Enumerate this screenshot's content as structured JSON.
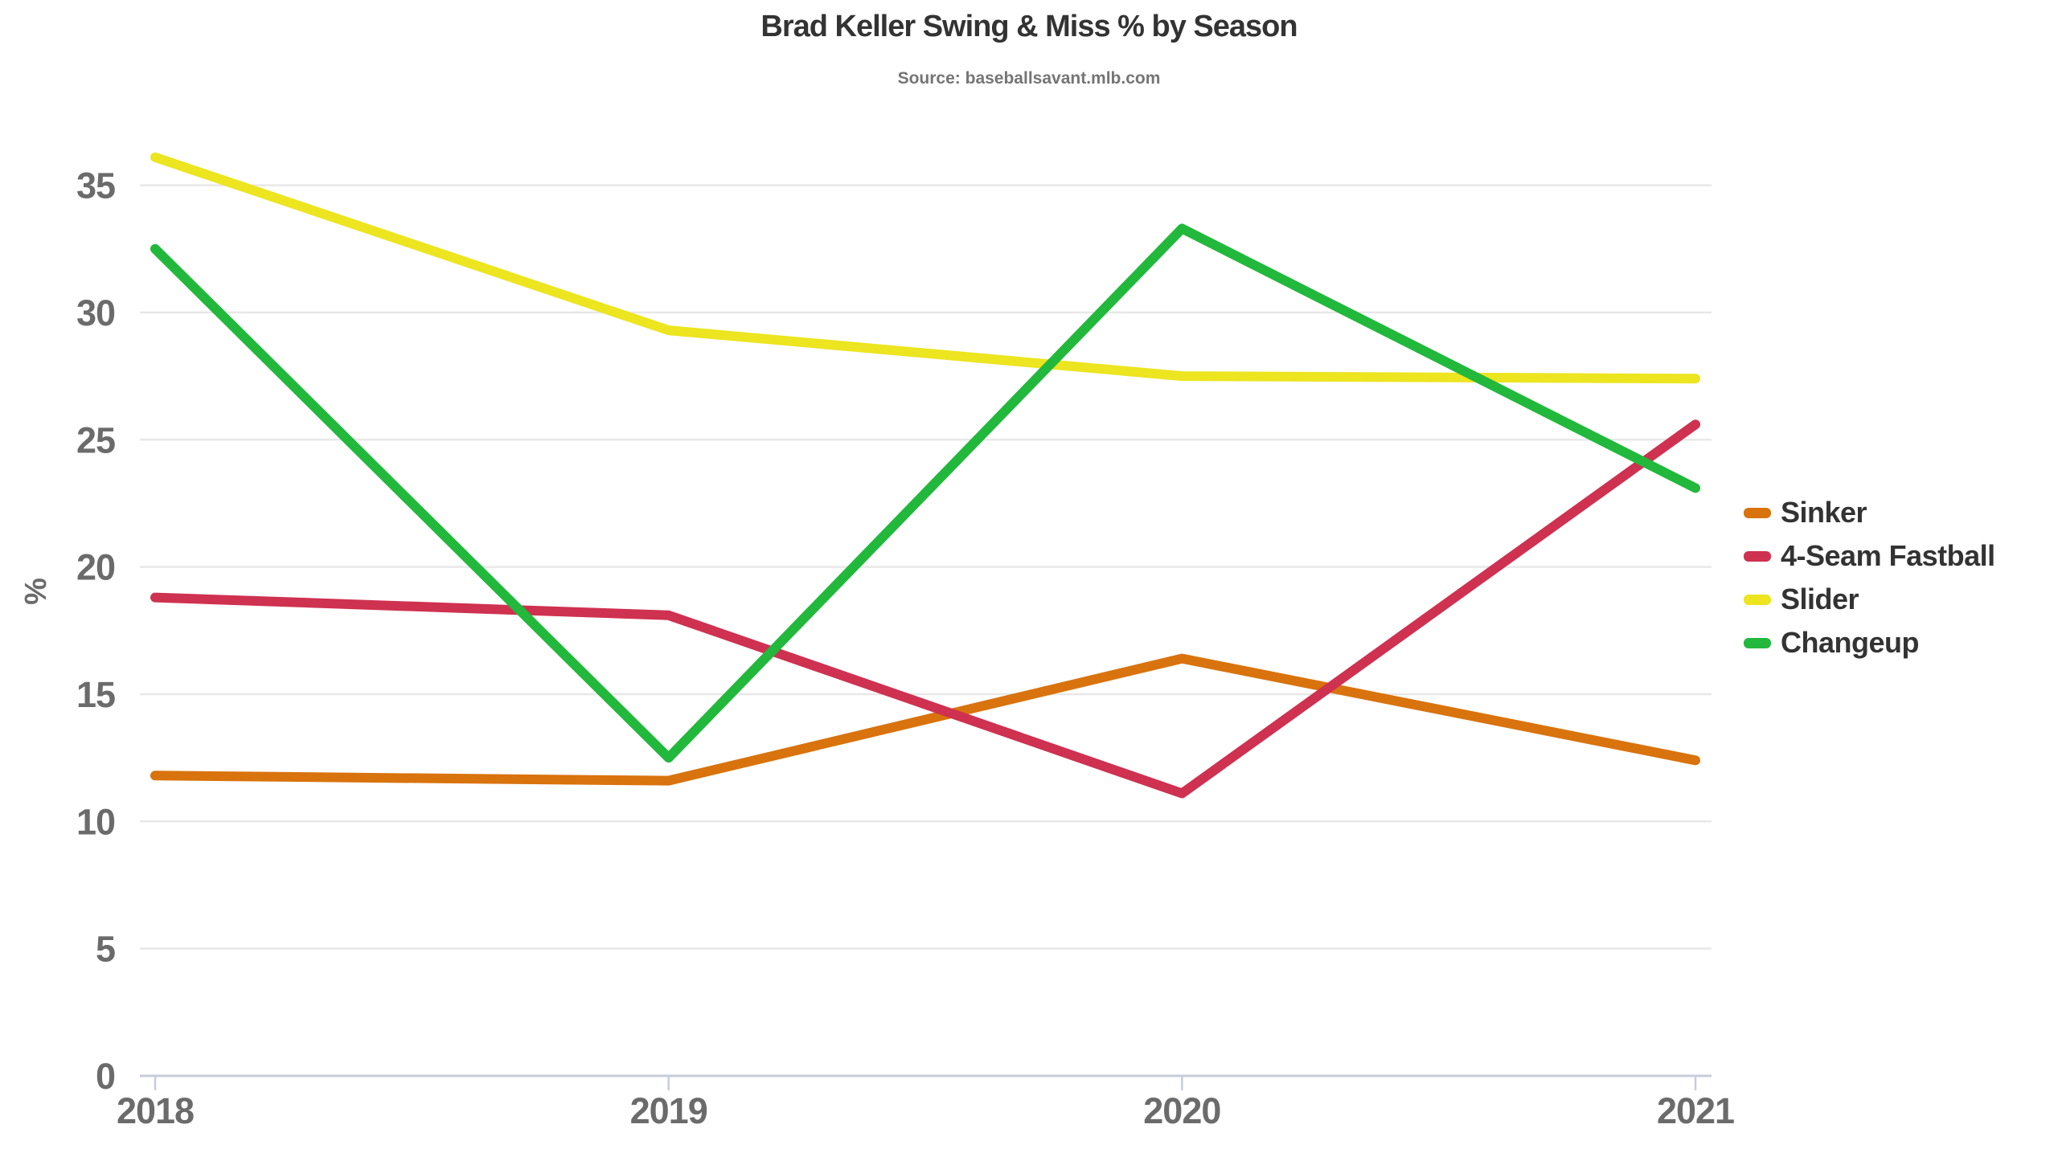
{
  "chart_data": {
    "type": "line",
    "title": "Brad Keller Swing & Miss % by Season",
    "source": "Source: baseballsavant.mlb.com",
    "xlabel": "",
    "ylabel": "%",
    "x": [
      "2018",
      "2019",
      "2020",
      "2021"
    ],
    "yticks": [
      0,
      5,
      10,
      15,
      20,
      25,
      30,
      35
    ],
    "ylim": [
      0,
      37
    ],
    "grid": true,
    "legend_position": "right",
    "series": [
      {
        "name": "Sinker",
        "color": "#d9730d",
        "values": [
          11.8,
          11.6,
          16.4,
          12.4
        ]
      },
      {
        "name": "4-Seam Fastball",
        "color": "#cf3150",
        "values": [
          18.8,
          18.1,
          11.1,
          25.6
        ]
      },
      {
        "name": "Slider",
        "color": "#ece51f",
        "values": [
          36.1,
          29.3,
          27.5,
          27.4
        ]
      },
      {
        "name": "Changeup",
        "color": "#22b83c",
        "values": [
          32.5,
          12.5,
          33.3,
          23.1
        ]
      }
    ]
  },
  "palette": {
    "background": "#ffffff",
    "title_text": "#333333",
    "source_text": "#757575",
    "tick_text": "#6b6b6b",
    "gridline": "#e8e8e8",
    "axis_line": "#c6cdda",
    "legend_text": "#333333"
  }
}
